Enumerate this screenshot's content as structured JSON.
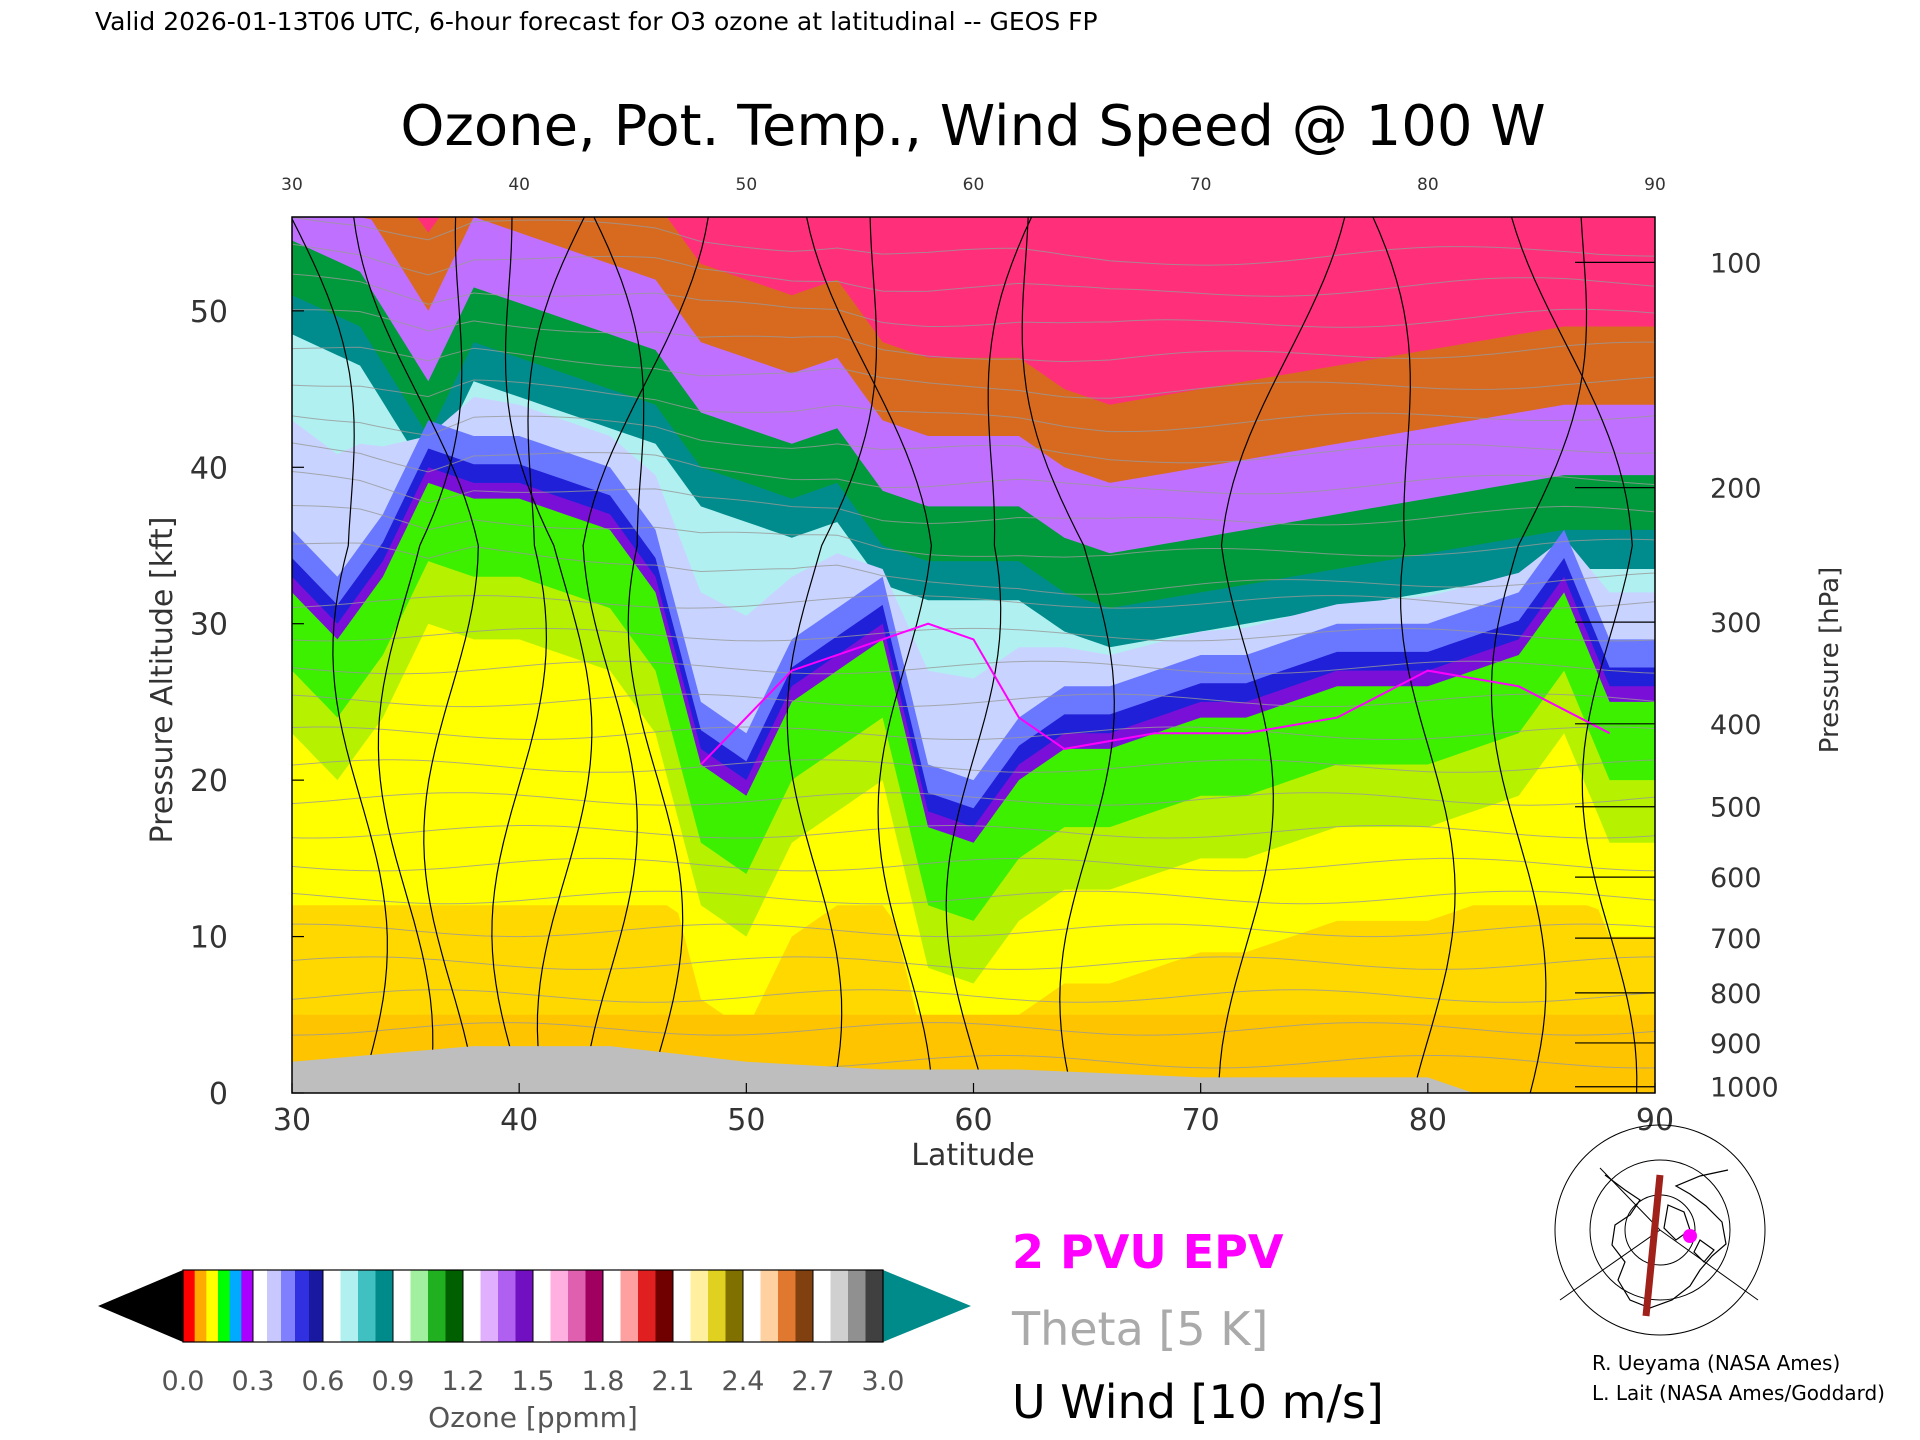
{
  "header": {
    "valid_line": "Valid 2026-01-13T06 UTC, 6-hour forecast for O3 ozone at latitudinal -- GEOS FP",
    "title": "Ozone, Pot. Temp., Wind Speed @ 100 W"
  },
  "chart_data": {
    "type": "heatmap",
    "title": "Ozone, Pot. Temp., Wind Speed @ 100 W",
    "xlabel": "Latitude",
    "ylabel": "Pressure Altitude [kft]",
    "y2label": "Pressure [hPa]",
    "xlim": [
      30,
      90
    ],
    "ylim": [
      0,
      56
    ],
    "x_ticks": [
      30,
      40,
      50,
      60,
      70,
      80,
      90
    ],
    "y_ticks": [
      0,
      10,
      20,
      30,
      40,
      50
    ],
    "pressure_ticks": [
      {
        "hPa": 100,
        "kft": 53.1
      },
      {
        "hPa": 200,
        "kft": 38.7
      },
      {
        "hPa": 300,
        "kft": 30.1
      },
      {
        "hPa": 400,
        "kft": 23.6
      },
      {
        "hPa": 500,
        "kft": 18.3
      },
      {
        "hPa": 600,
        "kft": 13.8
      },
      {
        "hPa": 700,
        "kft": 9.9
      },
      {
        "hPa": 800,
        "kft": 6.4
      },
      {
        "hPa": 900,
        "kft": 3.2
      },
      {
        "hPa": 1000,
        "kft": 0.4
      }
    ],
    "tropopause_kft": [
      [
        30,
        33
      ],
      [
        32,
        30
      ],
      [
        34,
        34
      ],
      [
        36,
        40
      ],
      [
        38,
        39
      ],
      [
        40,
        39
      ],
      [
        42,
        38
      ],
      [
        44,
        37
      ],
      [
        46,
        33
      ],
      [
        48,
        22
      ],
      [
        50,
        20
      ],
      [
        52,
        26
      ],
      [
        54,
        28
      ],
      [
        56,
        30
      ],
      [
        58,
        18
      ],
      [
        60,
        17
      ],
      [
        62,
        21
      ],
      [
        64,
        23
      ],
      [
        66,
        23
      ],
      [
        68,
        24
      ],
      [
        70,
        25
      ],
      [
        72,
        25
      ],
      [
        74,
        26
      ],
      [
        76,
        27
      ],
      [
        78,
        27
      ],
      [
        80,
        27
      ],
      [
        82,
        28
      ],
      [
        84,
        29
      ],
      [
        86,
        33
      ],
      [
        88,
        26
      ],
      [
        90,
        26
      ]
    ],
    "upper_boundary_kft": [
      [
        30,
        51
      ],
      [
        33,
        49
      ],
      [
        36,
        42
      ],
      [
        38,
        48
      ],
      [
        40,
        47
      ],
      [
        42,
        46
      ],
      [
        44,
        45
      ],
      [
        46,
        44
      ],
      [
        48,
        40
      ],
      [
        50,
        39
      ],
      [
        52,
        38
      ],
      [
        54,
        39
      ],
      [
        56,
        35
      ],
      [
        58,
        34
      ],
      [
        60,
        34
      ],
      [
        62,
        34
      ],
      [
        64,
        32
      ],
      [
        66,
        31
      ],
      [
        70,
        32
      ],
      [
        74,
        33
      ],
      [
        78,
        34
      ],
      [
        82,
        35
      ],
      [
        86,
        36
      ],
      [
        90,
        36
      ]
    ],
    "surface_kft": [
      [
        30,
        2
      ],
      [
        38,
        3
      ],
      [
        44,
        3
      ],
      [
        50,
        2
      ],
      [
        56,
        1.5
      ],
      [
        62,
        1.5
      ],
      [
        70,
        1
      ],
      [
        76,
        1
      ],
      [
        80,
        1
      ],
      [
        82,
        0
      ],
      [
        90,
        0
      ]
    ],
    "epv_2pvu_kft": [
      [
        48,
        21
      ],
      [
        52,
        27
      ],
      [
        56,
        29
      ],
      [
        58,
        30
      ],
      [
        60,
        29
      ],
      [
        62,
        24
      ],
      [
        64,
        22
      ],
      [
        68,
        23
      ],
      [
        72,
        23
      ],
      [
        76,
        24
      ],
      [
        80,
        27
      ],
      [
        84,
        26
      ],
      [
        88,
        23
      ]
    ],
    "colorbar": {
      "label": "Ozone [ppmm]",
      "ticks": [
        "0.0",
        "0.3",
        "0.6",
        "0.9",
        "1.2",
        "1.5",
        "1.8",
        "2.1",
        "2.4",
        "2.7",
        "3.0"
      ],
      "min": 0.0,
      "max": 3.0
    },
    "legend": [
      {
        "label": "2 PVU EPV",
        "color": "#ff00ff"
      },
      {
        "label": "Theta [5 K]",
        "color": "#aaaaaa"
      },
      {
        "label": "U Wind [10 m/s]",
        "color": "#000000"
      }
    ],
    "colors": {
      "surface": "#bebebe",
      "epv": "#ff00ff",
      "theta": "#999999",
      "under": "#000000",
      "over": "#008b8b"
    }
  },
  "credits": {
    "line1": "R. Ueyama (NASA Ames)",
    "line2": "L. Lait (NASA Ames/Goddard)"
  },
  "inset_map": {
    "icon": "polar-map-icon",
    "section_color": "#a0201a",
    "marker_color": "#ff00ff"
  }
}
